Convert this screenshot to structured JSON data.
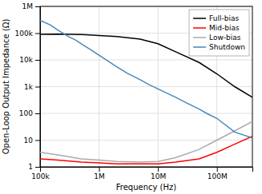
{
  "chart_data": {
    "type": "line",
    "x_label": "Frequency (Hz)",
    "y_label": "Open-Loop Output Impedance (Ω)",
    "log": true,
    "grid": true,
    "legend": "upper right",
    "xlim": [
      100000,
      400000000
    ],
    "ylim": [
      1,
      1000000
    ],
    "xticks": [
      {
        "value": 100000,
        "label": "100k"
      },
      {
        "value": 1000000,
        "label": "1M"
      },
      {
        "value": 10000000,
        "label": "10M"
      },
      {
        "value": 100000000,
        "label": "100M"
      }
    ],
    "yticks": [
      1,
      10,
      100,
      {
        "value": 1000,
        "label": "1k"
      },
      {
        "value": 10000,
        "label": "10k"
      },
      {
        "value": 100000,
        "label": "100k"
      },
      {
        "value": 1000000,
        "label": "1M"
      }
    ],
    "series": [
      {
        "name": "Full-bias",
        "color": "#000000",
        "x": [
          100000,
          200000,
          300000,
          500000,
          700000,
          1000000,
          2000000,
          5000000,
          10000000,
          20000000,
          50000000,
          100000000,
          200000000,
          400000000
        ],
        "values": [
          90000,
          92000,
          90000,
          88000,
          85000,
          82000,
          75000,
          60000,
          40000,
          20000,
          8000,
          3000,
          1000,
          400
        ]
      },
      {
        "name": "Mid-bias",
        "color": "#ff0000",
        "x": [
          100000,
          200000,
          500000,
          1000000,
          2000000,
          5000000,
          10000000,
          20000000,
          50000000,
          100000000,
          200000000,
          400000000
        ],
        "values": [
          2.0,
          1.8,
          1.5,
          1.4,
          1.3,
          1.3,
          1.3,
          1.5,
          2.0,
          3.5,
          7.0,
          14.0
        ]
      },
      {
        "name": "Low-bias",
        "color": "#aaaaaa",
        "x": [
          100000,
          200000,
          500000,
          1000000,
          2000000,
          5000000,
          10000000,
          20000000,
          50000000,
          100000000,
          200000000,
          400000000
        ],
        "values": [
          3.5,
          2.8,
          2.0,
          1.8,
          1.6,
          1.5,
          1.6,
          2.2,
          4.5,
          10.0,
          22.0,
          50.0
        ]
      },
      {
        "name": "Shutdown",
        "color": "#4488bb",
        "x": [
          100000,
          150000,
          200000,
          300000,
          400000,
          500000,
          700000,
          1000000,
          2000000,
          3000000,
          5000000,
          7000000,
          10000000,
          20000000,
          30000000,
          50000000,
          70000000,
          100000000,
          200000000,
          400000000
        ],
        "values": [
          300000,
          200000,
          130000,
          75000,
          55000,
          40000,
          25000,
          15000,
          5500,
          3200,
          1800,
          1200,
          820,
          400,
          250,
          145,
          95,
          65,
          20,
          12
        ]
      }
    ]
  }
}
